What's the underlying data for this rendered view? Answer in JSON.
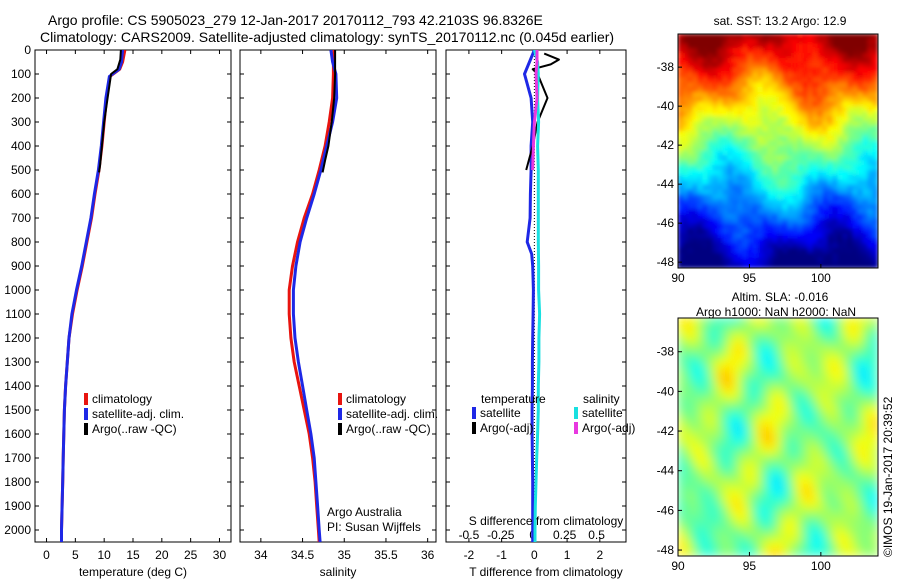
{
  "header": {
    "line1": "Argo profile: CS 5905023_279 12-Jan-2017 20170112_793 42.2103S 96.8326E",
    "line2": "Climatology: CARS2009. Satellite-adjusted climatology: synTS_20170112.nc (0.045d earlier)"
  },
  "credit": {
    "org": "Argo Australia",
    "pi": "PI: Susan Wijffels",
    "imos": "©IMOS 19-Jan-2017 20:39:52"
  },
  "colors": {
    "climatology": "#e8140f",
    "satellite": "#1e28e6",
    "argo": "#000000",
    "sat_salinity": "#18e0e0",
    "argo_salinity": "#e838e0"
  },
  "chart_data": [
    {
      "id": "temperature",
      "type": "line",
      "xlabel": "temperature (deg C)",
      "ylabel": "",
      "xlim": [
        -2,
        32
      ],
      "ylim": [
        2050,
        0
      ],
      "xticks": [
        0,
        5,
        10,
        15,
        20,
        25,
        30
      ],
      "yticks": [
        0,
        100,
        200,
        300,
        400,
        500,
        600,
        700,
        800,
        900,
        1000,
        1100,
        1200,
        1300,
        1400,
        1500,
        1600,
        1700,
        1800,
        1900,
        2000
      ],
      "legend": [
        "climatology",
        "satellite-adj. clim.",
        "Argo(..raw -QC)"
      ],
      "series": [
        {
          "name": "climatology",
          "color_key": "climatology",
          "points": [
            [
              13.6,
              0
            ],
            [
              13.2,
              50
            ],
            [
              12.7,
              80
            ],
            [
              11.0,
              110
            ],
            [
              10.4,
              200
            ],
            [
              10.0,
              300
            ],
            [
              9.6,
              400
            ],
            [
              9.1,
              500
            ],
            [
              8.4,
              600
            ],
            [
              7.8,
              700
            ],
            [
              7.0,
              800
            ],
            [
              6.2,
              900
            ],
            [
              5.3,
              1000
            ],
            [
              4.5,
              1100
            ],
            [
              3.9,
              1200
            ],
            [
              3.6,
              1300
            ],
            [
              3.3,
              1400
            ],
            [
              3.1,
              1500
            ],
            [
              3.0,
              1600
            ],
            [
              2.9,
              1700
            ],
            [
              2.8,
              1800
            ],
            [
              2.7,
              1900
            ],
            [
              2.6,
              2000
            ],
            [
              2.6,
              2050
            ]
          ]
        },
        {
          "name": "satellite-adj. clim.",
          "color_key": "satellite",
          "points": [
            [
              13.2,
              0
            ],
            [
              13.0,
              50
            ],
            [
              12.6,
              80
            ],
            [
              10.9,
              110
            ],
            [
              10.3,
              200
            ],
            [
              9.9,
              300
            ],
            [
              9.5,
              400
            ],
            [
              9.0,
              500
            ],
            [
              8.3,
              600
            ],
            [
              7.7,
              700
            ],
            [
              6.9,
              800
            ],
            [
              6.1,
              900
            ],
            [
              5.2,
              1000
            ],
            [
              4.4,
              1100
            ],
            [
              3.9,
              1200
            ],
            [
              3.6,
              1300
            ],
            [
              3.3,
              1400
            ],
            [
              3.1,
              1500
            ],
            [
              3.0,
              1600
            ],
            [
              2.9,
              1700
            ],
            [
              2.8,
              1800
            ],
            [
              2.7,
              1900
            ],
            [
              2.6,
              2000
            ],
            [
              2.6,
              2050
            ]
          ]
        },
        {
          "name": "Argo(..raw -QC)",
          "color_key": "argo",
          "points": [
            [
              12.9,
              0
            ],
            [
              12.8,
              40
            ],
            [
              12.3,
              80
            ],
            [
              11.2,
              100
            ],
            [
              10.6,
              200
            ],
            [
              10.0,
              300
            ],
            [
              9.6,
              400
            ],
            [
              9.3,
              480
            ],
            [
              9.1,
              510
            ]
          ]
        }
      ]
    },
    {
      "id": "salinity",
      "type": "line",
      "xlabel": "salinity",
      "ylabel": "",
      "xlim": [
        33.75,
        36.1
      ],
      "ylim": [
        2050,
        0
      ],
      "xticks": [
        34,
        34.5,
        35,
        35.5,
        36
      ],
      "legend": [
        "climatology",
        "satellite-adj. clim.",
        "Argo(..raw -QC)"
      ],
      "series": [
        {
          "name": "climatology",
          "color_key": "climatology",
          "points": [
            [
              34.88,
              0
            ],
            [
              34.87,
              50
            ],
            [
              34.87,
              100
            ],
            [
              34.86,
              200
            ],
            [
              34.82,
              300
            ],
            [
              34.77,
              400
            ],
            [
              34.7,
              500
            ],
            [
              34.62,
              600
            ],
            [
              34.52,
              700
            ],
            [
              34.44,
              800
            ],
            [
              34.38,
              900
            ],
            [
              34.34,
              1000
            ],
            [
              34.34,
              1100
            ],
            [
              34.36,
              1200
            ],
            [
              34.4,
              1300
            ],
            [
              34.46,
              1400
            ],
            [
              34.52,
              1500
            ],
            [
              34.58,
              1600
            ],
            [
              34.62,
              1700
            ],
            [
              34.65,
              1800
            ],
            [
              34.67,
              1900
            ],
            [
              34.69,
              2000
            ],
            [
              34.7,
              2050
            ]
          ]
        },
        {
          "name": "satellite-adj. clim.",
          "color_key": "satellite",
          "points": [
            [
              34.84,
              0
            ],
            [
              34.86,
              50
            ],
            [
              34.9,
              100
            ],
            [
              34.91,
              200
            ],
            [
              34.86,
              300
            ],
            [
              34.79,
              400
            ],
            [
              34.72,
              500
            ],
            [
              34.64,
              600
            ],
            [
              34.55,
              700
            ],
            [
              34.47,
              800
            ],
            [
              34.42,
              900
            ],
            [
              34.39,
              1000
            ],
            [
              34.39,
              1100
            ],
            [
              34.41,
              1200
            ],
            [
              34.45,
              1300
            ],
            [
              34.5,
              1400
            ],
            [
              34.55,
              1500
            ],
            [
              34.6,
              1600
            ],
            [
              34.64,
              1700
            ],
            [
              34.66,
              1800
            ],
            [
              34.68,
              1900
            ],
            [
              34.7,
              2000
            ],
            [
              34.71,
              2050
            ]
          ]
        },
        {
          "name": "Argo(..raw -QC)",
          "color_key": "argo",
          "points": [
            [
              34.89,
              0
            ],
            [
              34.89,
              50
            ],
            [
              34.89,
              100
            ],
            [
              34.88,
              200
            ],
            [
              34.85,
              300
            ],
            [
              34.81,
              400
            ],
            [
              34.77,
              460
            ],
            [
              34.74,
              510
            ]
          ]
        }
      ]
    },
    {
      "id": "difference",
      "type": "line",
      "xlabel": "T difference from climatology",
      "x2label": "S difference from climatology",
      "ylabel": "",
      "xlim": [
        -2.7,
        2.8
      ],
      "ylim": [
        2050,
        0
      ],
      "xticks": [
        -2,
        -1,
        0,
        1,
        2
      ],
      "x2ticks": [
        -0.5,
        -0.25,
        0,
        0.25,
        0.5
      ],
      "legend_headers": [
        "temperature",
        "salinity"
      ],
      "legend": [
        "satellite",
        "Argo(-adj)",
        "satellite",
        "Argo(-adj)"
      ],
      "series": [
        {
          "name": "temperature satellite",
          "color_key": "satellite",
          "points": [
            [
              0.0,
              0
            ],
            [
              -0.3,
              100
            ],
            [
              -0.1,
              200
            ],
            [
              -0.05,
              300
            ],
            [
              -0.1,
              400
            ],
            [
              -0.1,
              500
            ],
            [
              -0.12,
              600
            ],
            [
              -0.13,
              700
            ],
            [
              -0.22,
              800
            ],
            [
              -0.08,
              850
            ],
            [
              -0.05,
              900
            ],
            [
              -0.03,
              1000
            ],
            [
              -0.04,
              1100
            ],
            [
              -0.05,
              1200
            ],
            [
              -0.06,
              1300
            ],
            [
              -0.06,
              1400
            ],
            [
              -0.07,
              1500
            ],
            [
              -0.07,
              1600
            ],
            [
              -0.06,
              1700
            ],
            [
              -0.05,
              1800
            ],
            [
              -0.05,
              1900
            ],
            [
              -0.05,
              2000
            ],
            [
              -0.05,
              2050
            ]
          ]
        },
        {
          "name": "temperature Argo(-adj)",
          "color_key": "argo",
          "points": [
            [
              0.3,
              15
            ],
            [
              0.75,
              40
            ],
            [
              0.5,
              60
            ],
            [
              -0.05,
              80
            ],
            [
              0.1,
              100
            ],
            [
              0.4,
              200
            ],
            [
              0.1,
              300
            ],
            [
              -0.05,
              400
            ],
            [
              -0.25,
              500
            ]
          ]
        },
        {
          "name": "salinity satellite",
          "color_key": "sat_salinity",
          "points": [
            [
              0.0,
              0
            ],
            [
              0.1,
              50
            ],
            [
              0.12,
              100
            ],
            [
              0.1,
              200
            ],
            [
              0.13,
              300
            ],
            [
              0.1,
              400
            ],
            [
              0.12,
              500
            ],
            [
              0.12,
              600
            ],
            [
              0.12,
              700
            ],
            [
              0.12,
              800
            ],
            [
              0.13,
              900
            ],
            [
              0.13,
              1000
            ],
            [
              0.16,
              1100
            ],
            [
              0.14,
              1200
            ],
            [
              0.14,
              1300
            ],
            [
              0.12,
              1400
            ],
            [
              0.12,
              1500
            ],
            [
              0.1,
              1600
            ],
            [
              0.07,
              1700
            ],
            [
              0.05,
              1800
            ],
            [
              0.03,
              1900
            ],
            [
              0.02,
              2000
            ],
            [
              0.02,
              2050
            ]
          ]
        },
        {
          "name": "salinity Argo(-adj)",
          "color_key": "argo_salinity",
          "points": [
            [
              0.08,
              0
            ],
            [
              0.08,
              50
            ],
            [
              0.05,
              100
            ],
            [
              0.08,
              200
            ],
            [
              0.0,
              300
            ],
            [
              -0.03,
              400
            ],
            [
              -0.05,
              500
            ]
          ]
        }
      ]
    },
    {
      "id": "sst_map",
      "type": "heatmap",
      "title": "sat. SST: 13.2 Argo: 12.9",
      "xlim": [
        90,
        104
      ],
      "ylim": [
        -48.3,
        -36.3
      ],
      "xticks": [
        90,
        95,
        100
      ],
      "yticks": [
        -38,
        -40,
        -42,
        -44,
        -46,
        -48
      ],
      "colorscale": "jet",
      "gradient": "warm in north, cold in south"
    },
    {
      "id": "sla_map",
      "type": "heatmap",
      "title": "Altim. SLA: -0.016",
      "subtitle": "Argo h1000: NaN h2000: NaN",
      "xlim": [
        90,
        104
      ],
      "ylim": [
        -48.3,
        -36.3
      ],
      "xticks": [
        90,
        95,
        100
      ],
      "yticks": [
        -38,
        -40,
        -42,
        -44,
        -46,
        -48
      ],
      "colorscale": "jet"
    }
  ]
}
